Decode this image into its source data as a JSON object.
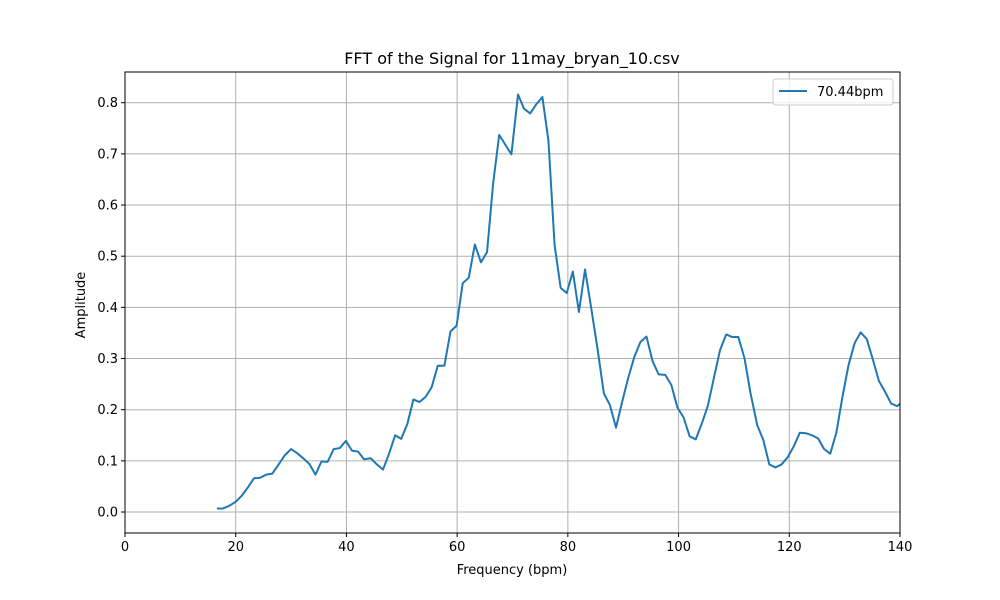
{
  "chart_data": {
    "type": "line",
    "title": "FFT of the Signal for 11may_bryan_10.csv",
    "xlabel": "Frequency (bpm)",
    "ylabel": "Amplitude",
    "xlim": [
      0,
      140
    ],
    "ylim": [
      -0.041,
      0.86
    ],
    "xticks": [
      0,
      20,
      40,
      60,
      80,
      100,
      120,
      140
    ],
    "yticks": [
      0.0,
      0.1,
      0.2,
      0.3,
      0.4,
      0.5,
      0.6,
      0.7,
      0.8
    ],
    "xtick_labels": [
      "0",
      "20",
      "40",
      "60",
      "80",
      "100",
      "120",
      "140"
    ],
    "ytick_labels": [
      "0.0",
      "0.1",
      "0.2",
      "0.3",
      "0.4",
      "0.5",
      "0.6",
      "0.7",
      "0.8"
    ],
    "grid": true,
    "legend_position": "top-right",
    "colors": {
      "series": "#1f77b4",
      "grid": "#b0b0b0"
    },
    "series": [
      {
        "name": "70.44bpm",
        "x": [
          16.6,
          17.7,
          18.8,
          20.0,
          21.1,
          22.2,
          23.3,
          24.4,
          25.5,
          26.6,
          27.7,
          28.8,
          30.0,
          31.1,
          32.2,
          33.3,
          34.4,
          35.5,
          36.6,
          37.7,
          38.8,
          39.9,
          41.0,
          42.1,
          43.2,
          44.4,
          45.5,
          46.6,
          47.7,
          48.8,
          49.9,
          51.0,
          52.1,
          53.2,
          54.3,
          55.4,
          56.5,
          57.7,
          58.8,
          59.9,
          61.0,
          62.1,
          63.2,
          64.3,
          65.4,
          66.5,
          67.6,
          68.7,
          69.8,
          71.0,
          72.1,
          73.2,
          74.3,
          75.4,
          76.5,
          77.6,
          78.7,
          79.8,
          80.9,
          82.0,
          83.1,
          84.2,
          85.4,
          86.5,
          87.6,
          88.7,
          89.8,
          90.9,
          92.0,
          93.1,
          94.2,
          95.3,
          96.4,
          97.6,
          98.7,
          99.8,
          100.9,
          102.0,
          103.1,
          104.2,
          105.3,
          106.4,
          107.5,
          108.6,
          109.7,
          110.8,
          111.9,
          113.0,
          114.2,
          115.3,
          116.4,
          117.5,
          118.6,
          119.7,
          120.8,
          121.9,
          123.0,
          124.1,
          125.2,
          126.3,
          127.4,
          128.5,
          129.6,
          130.7,
          131.8,
          132.9,
          134.0,
          135.1,
          136.2,
          137.3,
          138.4,
          139.5,
          140.6
        ],
        "values": [
          0.007,
          0.007,
          0.012,
          0.02,
          0.032,
          0.048,
          0.066,
          0.067,
          0.073,
          0.075,
          0.092,
          0.11,
          0.123,
          0.115,
          0.105,
          0.094,
          0.073,
          0.099,
          0.098,
          0.123,
          0.125,
          0.139,
          0.12,
          0.118,
          0.103,
          0.105,
          0.093,
          0.083,
          0.114,
          0.15,
          0.143,
          0.172,
          0.22,
          0.215,
          0.225,
          0.244,
          0.286,
          0.286,
          0.353,
          0.364,
          0.447,
          0.458,
          0.523,
          0.488,
          0.508,
          0.642,
          0.737,
          0.718,
          0.699,
          0.816,
          0.788,
          0.779,
          0.797,
          0.811,
          0.725,
          0.522,
          0.438,
          0.428,
          0.47,
          0.391,
          0.474,
          0.4,
          0.316,
          0.232,
          0.209,
          0.165,
          0.215,
          0.262,
          0.303,
          0.332,
          0.343,
          0.295,
          0.269,
          0.268,
          0.248,
          0.204,
          0.185,
          0.148,
          0.142,
          0.173,
          0.208,
          0.263,
          0.317,
          0.347,
          0.342,
          0.342,
          0.301,
          0.232,
          0.17,
          0.141,
          0.093,
          0.087,
          0.093,
          0.107,
          0.128,
          0.155,
          0.154,
          0.15,
          0.144,
          0.123,
          0.114,
          0.155,
          0.225,
          0.287,
          0.33,
          0.351,
          0.338,
          0.298,
          0.256,
          0.235,
          0.212,
          0.207,
          0.217
        ]
      }
    ]
  }
}
